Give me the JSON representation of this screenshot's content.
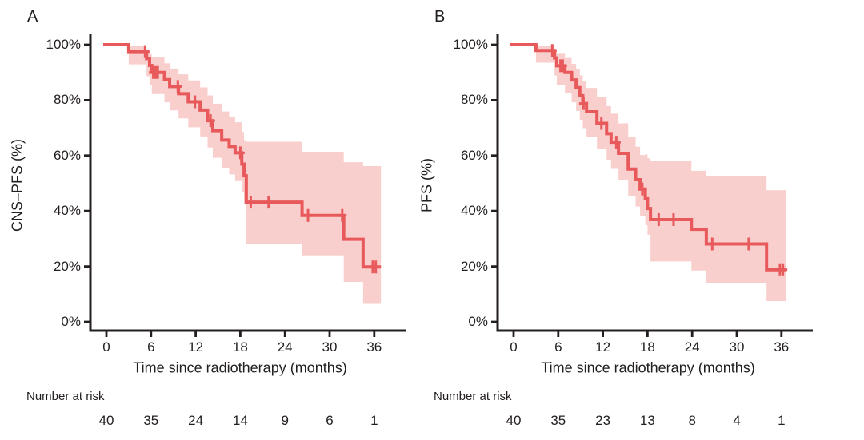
{
  "figure": {
    "background": "#ffffff",
    "line_color": "#e8595b",
    "band_color": "#f9cfcd",
    "axis_color": "#231f20"
  },
  "chart_data": [
    {
      "type": "line",
      "subtype": "kaplan-meier-step-with-ci-band",
      "title": "A",
      "ylabel": "CNS–PFS (%)",
      "xlabel": "Time since radiotherapy (months)",
      "risk_header": "Number at risk",
      "xlim": [
        0,
        42
      ],
      "ylim": [
        0,
        100
      ],
      "xticks": [
        0,
        6,
        12,
        18,
        24,
        30,
        36
      ],
      "xtick_labels": [
        "0",
        "6",
        "12",
        "18",
        "24",
        "30",
        "36"
      ],
      "yticks": [
        100,
        80,
        60,
        40,
        20,
        0
      ],
      "ytick_labels": [
        "100%",
        "80%",
        "60%",
        "40%",
        "20%",
        "0%"
      ],
      "grid": false,
      "legend": "none",
      "steps_note": "each step = [time_months, survival_pct, ci_lower_pct, ci_upper_pct]",
      "steps": [
        [
          0,
          100,
          100,
          100
        ],
        [
          3.0,
          97.5,
          92.9,
          99.6
        ],
        [
          5.4,
          95.0,
          88.6,
          98.3
        ],
        [
          5.8,
          92.5,
          85.4,
          96.9
        ],
        [
          6.1,
          90.0,
          82.2,
          95.4
        ],
        [
          7.8,
          87.4,
          79.2,
          93.3
        ],
        [
          8.5,
          84.9,
          76.3,
          91.4
        ],
        [
          9.7,
          82.3,
          73.4,
          89.3
        ],
        [
          11.0,
          79.4,
          70.2,
          87.1
        ],
        [
          12.6,
          76.4,
          66.9,
          84.6
        ],
        [
          13.6,
          72.6,
          62.9,
          81.7
        ],
        [
          14.3,
          69.0,
          59.2,
          78.7
        ],
        [
          15.5,
          65.6,
          55.6,
          75.9
        ],
        [
          16.5,
          63.3,
          53.2,
          74.0
        ],
        [
          17.3,
          61.0,
          50.8,
          72.0
        ],
        [
          18.2,
          56.9,
          46.6,
          68.5
        ],
        [
          18.5,
          52.7,
          42.3,
          65.5
        ],
        [
          18.8,
          43.2,
          28.2,
          65.0
        ],
        [
          26.3,
          38.4,
          24.0,
          61.4
        ],
        [
          31.9,
          29.8,
          14.4,
          57.6
        ],
        [
          34.5,
          19.8,
          6.5,
          56.2
        ]
      ],
      "end_time": 36.9,
      "censor_times": [
        5.2,
        6.3,
        6.6,
        6.9,
        9.6,
        11.9,
        14.0,
        18.0,
        19.4,
        21.8,
        27.1,
        31.7,
        35.8,
        36.2
      ],
      "risk_times": [
        0,
        6,
        12,
        18,
        24,
        30,
        36
      ],
      "number_at_risk": [
        "40",
        "35",
        "24",
        "14",
        "9",
        "6",
        "1"
      ]
    },
    {
      "type": "line",
      "subtype": "kaplan-meier-step-with-ci-band",
      "title": "B",
      "ylabel": "PFS (%)",
      "xlabel": "Time since radiotherapy (months)",
      "risk_header": "Number at risk",
      "xlim": [
        0,
        42
      ],
      "ylim": [
        0,
        100
      ],
      "xticks": [
        0,
        6,
        12,
        18,
        24,
        30,
        36
      ],
      "xtick_labels": [
        "0",
        "6",
        "12",
        "18",
        "24",
        "30",
        "36"
      ],
      "yticks": [
        100,
        80,
        60,
        40,
        20,
        0
      ],
      "ytick_labels": [
        "100%",
        "80%",
        "60%",
        "40%",
        "20%",
        "0%"
      ],
      "grid": false,
      "legend": "none",
      "steps_note": "each step = [time_months, survival_pct, ci_lower_pct, ci_upper_pct]",
      "steps": [
        [
          0,
          100,
          100,
          100
        ],
        [
          3.0,
          97.9,
          93.5,
          99.7
        ],
        [
          5.5,
          95.2,
          88.9,
          98.4
        ],
        [
          5.8,
          92.4,
          85.6,
          97.0
        ],
        [
          6.9,
          90.0,
          82.4,
          95.2
        ],
        [
          7.8,
          87.3,
          79.2,
          93.1
        ],
        [
          8.4,
          84.5,
          76.1,
          91.1
        ],
        [
          8.9,
          81.6,
          72.9,
          88.9
        ],
        [
          9.3,
          78.8,
          69.9,
          86.7
        ],
        [
          9.8,
          75.8,
          66.8,
          84.4
        ],
        [
          11.2,
          71.6,
          62.5,
          81.1
        ],
        [
          12.5,
          67.9,
          58.5,
          77.8
        ],
        [
          13.1,
          64.8,
          55.2,
          75.1
        ],
        [
          14.1,
          60.8,
          51.1,
          71.6
        ],
        [
          15.4,
          55.1,
          45.4,
          66.6
        ],
        [
          16.4,
          51.3,
          41.6,
          63.2
        ],
        [
          17.0,
          47.9,
          38.3,
          60.2
        ],
        [
          17.7,
          44.4,
          34.9,
          60.5
        ],
        [
          18.0,
          40.9,
          31.5,
          59.0
        ],
        [
          18.4,
          36.9,
          21.8,
          58.0
        ],
        [
          23.9,
          33.4,
          18.5,
          54.5
        ],
        [
          25.9,
          28.1,
          14.0,
          52.5
        ],
        [
          34.0,
          18.8,
          7.5,
          47.5
        ]
      ],
      "end_time": 36.6,
      "censor_times": [
        5.2,
        6.3,
        6.6,
        9.4,
        11.8,
        13.8,
        17.3,
        19.5,
        21.5,
        26.7,
        31.6,
        35.8,
        36.2
      ],
      "risk_times": [
        0,
        6,
        12,
        18,
        24,
        30,
        36
      ],
      "number_at_risk": [
        "40",
        "35",
        "23",
        "13",
        "8",
        "4",
        "1"
      ]
    }
  ]
}
